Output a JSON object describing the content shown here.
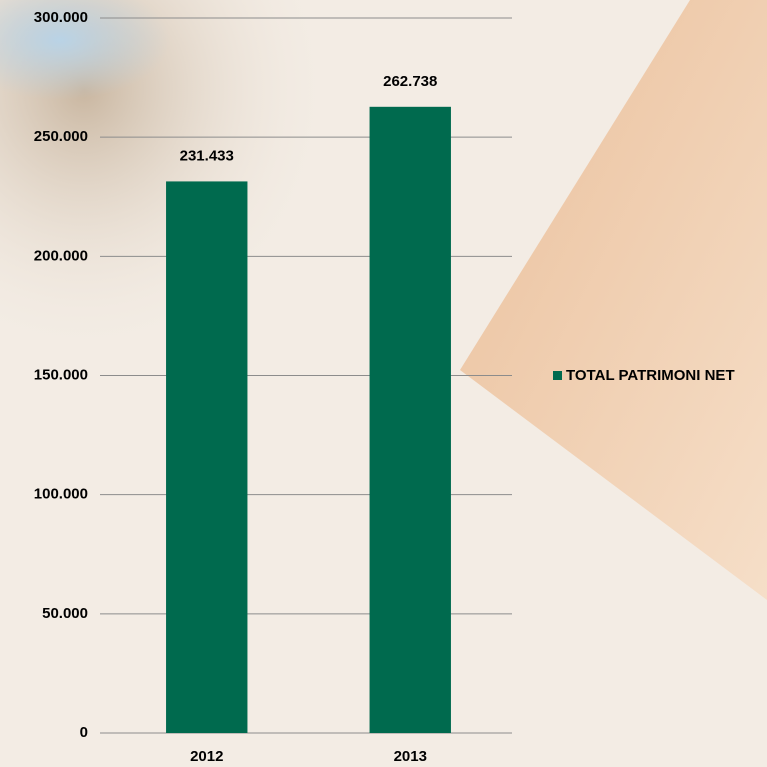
{
  "chart_data": {
    "type": "bar",
    "categories": [
      "2012",
      "2013"
    ],
    "series": [
      {
        "name": "TOTAL PATRIMONI NET",
        "color": "#006a4e",
        "values": [
          231433,
          262738
        ],
        "value_labels": [
          "231.433",
          "262.738"
        ]
      }
    ],
    "ylim": [
      0,
      300000
    ],
    "yticks": [
      0,
      {
        "value": 50000,
        "label": "50.000"
      },
      {
        "value": 100000,
        "label": "100.000"
      },
      {
        "value": 150000,
        "label": "150.000"
      },
      {
        "value": 200000,
        "label": "200.000"
      },
      {
        "value": 250000,
        "label": "250.000"
      },
      {
        "value": 300000,
        "label": "300.000"
      }
    ],
    "grid": true
  }
}
